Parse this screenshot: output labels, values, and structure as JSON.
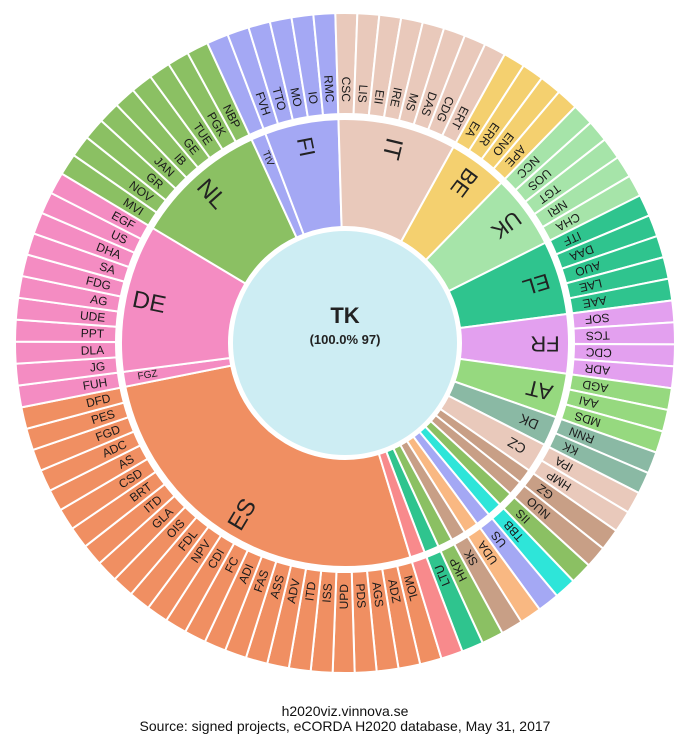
{
  "chart_data": {
    "type": "sunburst",
    "root": {
      "label": "TK",
      "subtitle": "(100.0% 97)"
    },
    "groups": [
      {
        "name": "ES",
        "color": "#f08f62",
        "children": [
          "MOL",
          "ADZ",
          "AGS",
          "PDS",
          "UPD",
          "ISS",
          "ITD",
          "ADV",
          "ASS",
          "FAS",
          "ADI",
          "FC",
          "CDI",
          "NPV",
          "FDL",
          "OIS",
          "GLA",
          "ITD",
          "BRT",
          "CSD",
          "AS",
          "ADC",
          "FGD",
          "PES",
          "DFD"
        ]
      },
      {
        "name": "FGZ",
        "color": "#f48cc2",
        "children": [
          "FUH"
        ]
      },
      {
        "name": "DE",
        "color": "#f48cc2",
        "children": [
          "JG",
          "DLA",
          "PPT",
          "UDE",
          "AG",
          "FDG",
          "SA",
          "DHA",
          "US",
          "EGF"
        ]
      },
      {
        "name": "NL",
        "color": "#8bc063",
        "children": [
          "MVI",
          "NOV",
          "GR",
          "JAN",
          "IB",
          "GE",
          "TUE",
          "PGK",
          "NBP"
        ]
      },
      {
        "name": "TtV",
        "color": "#a4a8f4",
        "children": []
      },
      {
        "name": "FI",
        "color": "#a4a8f4",
        "children": [
          "FVH",
          "TTO",
          "MO",
          "IO",
          "RMC"
        ]
      },
      {
        "name": "IT",
        "color": "#e9c9bb",
        "children": [
          "CSC",
          "LIS",
          "EII",
          "IRE",
          "MS",
          "DAS",
          "CDG",
          "ERT"
        ]
      },
      {
        "name": "BE",
        "color": "#f4d06f",
        "children": [
          "EA",
          "ERR",
          "ENO",
          "APE"
        ]
      },
      {
        "name": "UK",
        "color": "#a6e4a9",
        "children": [
          "NCC",
          "UOS",
          "TGT",
          "NRI",
          "CHA"
        ]
      },
      {
        "name": "EL",
        "color": "#2fc48e",
        "children": [
          "ITF",
          "DAA",
          "AUO",
          "LAE",
          "AAE"
        ]
      },
      {
        "name": "FR",
        "color": "#e3a0ef",
        "children": [
          "SOF",
          "TCS",
          "CDC",
          "ADR"
        ]
      },
      {
        "name": "AT",
        "color": "#96d97f",
        "children": [
          "AGD",
          "AAI",
          "MDS"
        ]
      },
      {
        "name": "DK",
        "color": "#8ab9a4",
        "children": [
          "RNN",
          "KK"
        ]
      },
      {
        "name": "CZ",
        "color": "#e9c9bb",
        "children": [
          "IPA",
          "HMP"
        ]
      },
      {
        "name": "",
        "color": "#c89f86",
        "children": [
          "GZ"
        ]
      },
      {
        "name": "",
        "color": "#c89f86",
        "children": [
          "NUO"
        ]
      },
      {
        "name": "",
        "color": "#8bc063",
        "children": [
          "IIS"
        ]
      },
      {
        "name": "",
        "color": "#2ee5d9",
        "children": [
          "TBB"
        ]
      },
      {
        "name": "",
        "color": "#a4a8f4",
        "children": [
          "US"
        ]
      },
      {
        "name": "",
        "color": "#f9b882",
        "children": [
          "UDA"
        ]
      },
      {
        "name": "",
        "color": "#c89f86",
        "children": [
          "SK"
        ]
      },
      {
        "name": "",
        "color": "#8bc063",
        "children": [
          "HKP"
        ]
      },
      {
        "name": "",
        "color": "#2fc48e",
        "children": [
          "LTU"
        ]
      },
      {
        "name": "",
        "color": "#f88a8c",
        "children": [
          ""
        ]
      }
    ]
  },
  "footer": {
    "site": "h2020viz.vinnova.se",
    "source": "Source: signed projects, eCORDA H2020 database, May 31, 2017"
  }
}
